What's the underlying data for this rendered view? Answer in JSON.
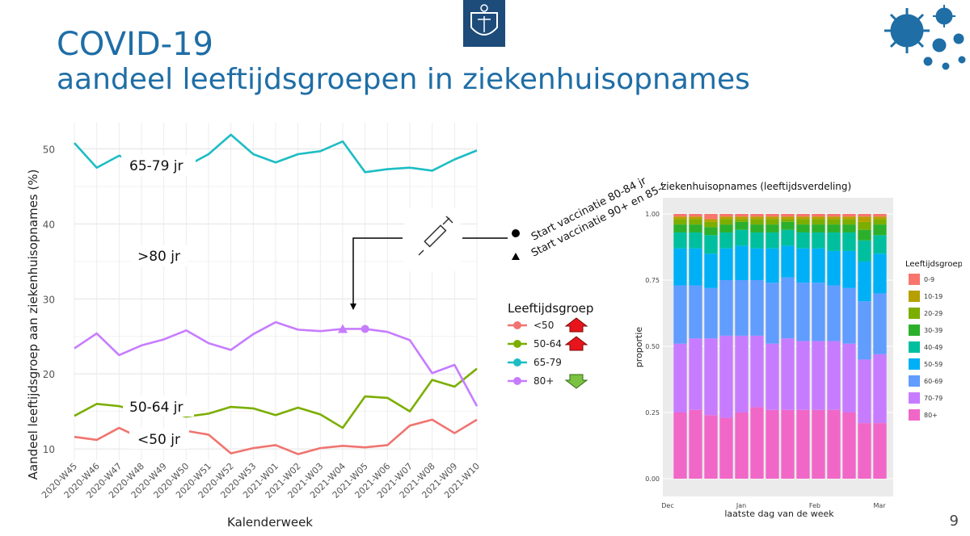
{
  "header": {
    "title": "COVID-19",
    "subtitle": "aandeel leeftijdsgroepen in ziekenhuisopnames",
    "page_number": "9",
    "title_color": "#1f6ea6"
  },
  "annotations": {
    "vaccination_80_84": "Start vaccinatie 80-84 jr",
    "vaccination_90_85": "Start vaccinatie 90+ en 85-89 jr",
    "label_65_79": "65-79 jr",
    "label_80": ">80 jr",
    "label_50_64": "50-64 jr",
    "label_50": "<50 jr",
    "icons": [
      "crest-icon",
      "virus-icon",
      "syringe-icon",
      "arrow-up-icon",
      "arrow-down-icon"
    ]
  },
  "chart_data": [
    {
      "type": "line",
      "title": "",
      "xlabel": "Kalenderweek",
      "ylabel": "Aandeel leeftijdsgroep aan ziekenhuisopnames (%)",
      "categories": [
        "2020-W45",
        "2020-W46",
        "2020-W47",
        "2020-W48",
        "2020-W49",
        "2020-W50",
        "2020-W51",
        "2020-W52",
        "2020-W53",
        "2021-W01",
        "2021-W02",
        "2021-W03",
        "2021-W04",
        "2021-W05",
        "2021-W06",
        "2021-W07",
        "2021-W08",
        "2021-W09",
        "2021-W10"
      ],
      "yticks": [
        10,
        20,
        30,
        40,
        50
      ],
      "ylim": [
        8.5,
        53.5
      ],
      "grid": true,
      "legend": {
        "title": "Leeftijdsgroep",
        "position": "right",
        "trends": [
          "up",
          "up",
          "",
          "down"
        ]
      },
      "series": [
        {
          "name": "<50",
          "color": "#f07470",
          "values": [
            11.6,
            11.2,
            12.8,
            11.4,
            11.8,
            12.4,
            11.9,
            9.4,
            10.1,
            10.5,
            9.3,
            10.1,
            10.4,
            10.2,
            10.5,
            13.1,
            13.9,
            12.1,
            13.9
          ]
        },
        {
          "name": "50-64",
          "color": "#7cae00",
          "values": [
            14.4,
            16.0,
            15.7,
            14.9,
            15.1,
            14.3,
            14.7,
            15.6,
            15.4,
            14.5,
            15.5,
            14.6,
            12.8,
            17.0,
            16.8,
            15.0,
            19.2,
            18.3,
            20.7
          ]
        },
        {
          "name": "65-79",
          "color": "#1dbdc4",
          "values": [
            50.8,
            47.5,
            49.1,
            48.0,
            47.6,
            47.7,
            49.3,
            51.9,
            49.3,
            48.2,
            49.3,
            49.7,
            51.0,
            46.9,
            47.3,
            47.5,
            47.1,
            48.6,
            49.8
          ]
        },
        {
          "name": "80+",
          "color": "#c77cff",
          "values": [
            23.4,
            25.4,
            22.5,
            23.8,
            24.6,
            25.8,
            24.1,
            23.2,
            25.3,
            26.9,
            25.9,
            25.7,
            26.0,
            26.0,
            25.6,
            24.5,
            20.1,
            21.2,
            15.7
          ]
        }
      ],
      "markers": [
        {
          "category": "2021-W04",
          "series": "80+",
          "shape": "triangle"
        },
        {
          "category": "2021-W05",
          "series": "80+",
          "shape": "circle"
        }
      ]
    },
    {
      "type": "bar",
      "stacked": true,
      "title": "ziekenhuisopnames (leeftijdsverdeling)",
      "xlabel": "laatste dag van de week",
      "ylabel": "proportie",
      "yticks": [
        "0.00",
        "0.25",
        "0.50",
        "0.75",
        "1.00"
      ],
      "xticks": [
        "Dec",
        "Jan",
        "Feb",
        "Mar"
      ],
      "ylim": [
        0,
        1
      ],
      "legend": {
        "title": "Leeftijdsgroep",
        "position": "right"
      },
      "series": [
        {
          "name": "80+",
          "color": "#f167c8",
          "values": [
            0.25,
            0.26,
            0.24,
            0.23,
            0.25,
            0.27,
            0.26,
            0.26,
            0.26,
            0.26,
            0.26,
            0.25,
            0.21,
            0.21
          ]
        },
        {
          "name": "70-79",
          "color": "#c77cff",
          "values": [
            0.26,
            0.27,
            0.29,
            0.31,
            0.29,
            0.27,
            0.25,
            0.27,
            0.26,
            0.26,
            0.26,
            0.26,
            0.24,
            0.26
          ]
        },
        {
          "name": "60-69",
          "color": "#619cff",
          "values": [
            0.22,
            0.2,
            0.19,
            0.21,
            0.21,
            0.21,
            0.23,
            0.23,
            0.22,
            0.22,
            0.21,
            0.21,
            0.22,
            0.23
          ]
        },
        {
          "name": "50-59",
          "color": "#00b0f6",
          "values": [
            0.14,
            0.14,
            0.13,
            0.12,
            0.13,
            0.12,
            0.13,
            0.12,
            0.13,
            0.13,
            0.13,
            0.14,
            0.15,
            0.15
          ]
        },
        {
          "name": "40-49",
          "color": "#00bf9f",
          "values": [
            0.06,
            0.06,
            0.07,
            0.06,
            0.06,
            0.06,
            0.06,
            0.06,
            0.06,
            0.06,
            0.07,
            0.07,
            0.08,
            0.07
          ]
        },
        {
          "name": "30-39",
          "color": "#2cb02c",
          "values": [
            0.03,
            0.03,
            0.03,
            0.03,
            0.03,
            0.03,
            0.03,
            0.03,
            0.03,
            0.03,
            0.03,
            0.03,
            0.04,
            0.04
          ]
        },
        {
          "name": "20-29",
          "color": "#7cae00",
          "values": [
            0.02,
            0.02,
            0.02,
            0.02,
            0.01,
            0.02,
            0.02,
            0.01,
            0.02,
            0.02,
            0.02,
            0.02,
            0.03,
            0.02
          ]
        },
        {
          "name": "10-19",
          "color": "#b79f00",
          "values": [
            0.01,
            0.01,
            0.01,
            0.01,
            0.01,
            0.01,
            0.01,
            0.01,
            0.01,
            0.01,
            0.01,
            0.01,
            0.02,
            0.01
          ]
        },
        {
          "name": "0-9",
          "color": "#f8766d",
          "values": [
            0.01,
            0.01,
            0.02,
            0.01,
            0.01,
            0.01,
            0.01,
            0.01,
            0.01,
            0.01,
            0.01,
            0.01,
            0.01,
            0.01
          ]
        }
      ]
    }
  ]
}
